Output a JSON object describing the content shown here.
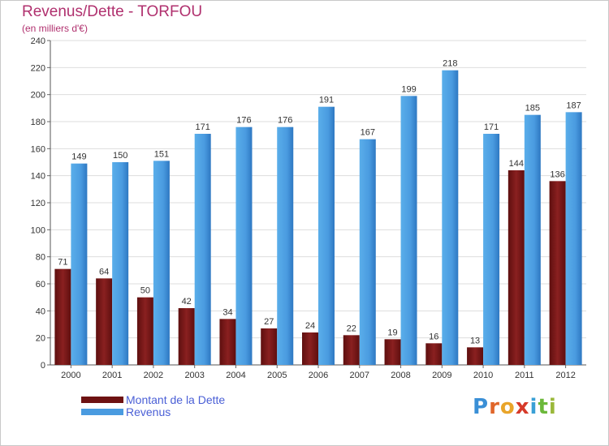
{
  "title": "Revenus/Dette - TORFOU",
  "subtitle": "(en milliers d'€)",
  "logo": {
    "letters": [
      {
        "ch": "P",
        "color": "#3a8fd6"
      },
      {
        "ch": "r",
        "color": "#e0662a"
      },
      {
        "ch": "o",
        "color": "#e9a52a"
      },
      {
        "ch": "x",
        "color": "#d63a2a"
      },
      {
        "ch": "i",
        "color": "#3aa0d6"
      },
      {
        "ch": "t",
        "color": "#6bb83a"
      },
      {
        "ch": "i",
        "color": "#9ab83a"
      }
    ]
  },
  "colors": {
    "dette": "#7a1a1a",
    "revenus": "#4a9be0",
    "axis_text": "#333333",
    "grid": "#dddddd"
  },
  "chart_data": {
    "type": "bar",
    "title": "Revenus/Dette - TORFOU",
    "subtitle": "(en milliers d'€)",
    "categories": [
      "2000",
      "2001",
      "2002",
      "2003",
      "2004",
      "2005",
      "2006",
      "2007",
      "2008",
      "2009",
      "2010",
      "2011",
      "2012"
    ],
    "series": [
      {
        "name": "Montant de la Dette",
        "values": [
          71,
          64,
          50,
          42,
          34,
          27,
          24,
          22,
          19,
          16,
          13,
          144,
          136
        ]
      },
      {
        "name": "Revenus",
        "values": [
          149,
          150,
          151,
          171,
          176,
          176,
          191,
          167,
          199,
          218,
          171,
          185,
          187
        ]
      }
    ],
    "ylim": [
      0,
      240
    ],
    "yticks": [
      0,
      20,
      40,
      60,
      80,
      100,
      120,
      140,
      160,
      180,
      200,
      220,
      240
    ],
    "grid": true,
    "legend_position": "bottom-left"
  }
}
